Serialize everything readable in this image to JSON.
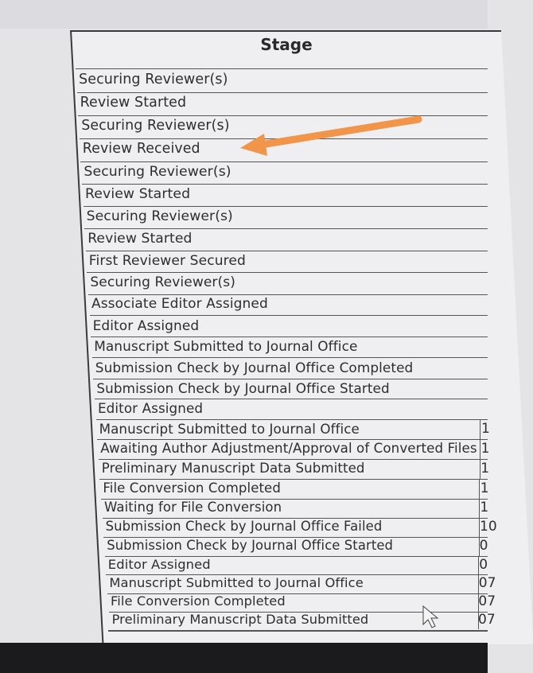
{
  "table": {
    "header": "Stage",
    "rows": [
      {
        "stage": "Securing Reviewer(s)",
        "col2": ""
      },
      {
        "stage": "Review Started",
        "col2": ""
      },
      {
        "stage": "Securing Reviewer(s)",
        "col2": ""
      },
      {
        "stage": "Review Received",
        "col2": ""
      },
      {
        "stage": "Securing Reviewer(s)",
        "col2": ""
      },
      {
        "stage": "Review Started",
        "col2": ""
      },
      {
        "stage": "Securing Reviewer(s)",
        "col2": ""
      },
      {
        "stage": "Review Started",
        "col2": ""
      },
      {
        "stage": "First Reviewer Secured",
        "col2": ""
      },
      {
        "stage": "Securing Reviewer(s)",
        "col2": ""
      },
      {
        "stage": "Associate Editor Assigned",
        "col2": ""
      },
      {
        "stage": "Editor Assigned",
        "col2": ""
      },
      {
        "stage": "Manuscript Submitted to Journal Office",
        "col2": ""
      },
      {
        "stage": "Submission Check by Journal Office Completed",
        "col2": ""
      },
      {
        "stage": "Submission Check by Journal Office Started",
        "col2": ""
      },
      {
        "stage": "Editor Assigned",
        "col2": ""
      },
      {
        "stage": "Manuscript Submitted to Journal Office",
        "col2": "1"
      },
      {
        "stage": "Awaiting Author Adjustment/Approval of Converted Files",
        "col2": "1"
      },
      {
        "stage": "Preliminary Manuscript Data Submitted",
        "col2": "1"
      },
      {
        "stage": "File Conversion Completed",
        "col2": "1"
      },
      {
        "stage": "Waiting for File Conversion",
        "col2": "1"
      },
      {
        "stage": "Submission Check by Journal Office Failed",
        "col2": "10"
      },
      {
        "stage": "Submission Check by Journal Office Started",
        "col2": "0"
      },
      {
        "stage": "Editor Assigned",
        "col2": "0"
      },
      {
        "stage": "Manuscript Submitted to Journal Office",
        "col2": "07"
      },
      {
        "stage": "File Conversion Completed",
        "col2": "07"
      },
      {
        "stage": "Preliminary Manuscript Data Submitted",
        "col2": "07"
      }
    ]
  },
  "annotation": {
    "arrow_color": "#f0954a",
    "points_to": "Review Received"
  },
  "icons": {
    "cursor": "mouse-pointer-icon"
  }
}
